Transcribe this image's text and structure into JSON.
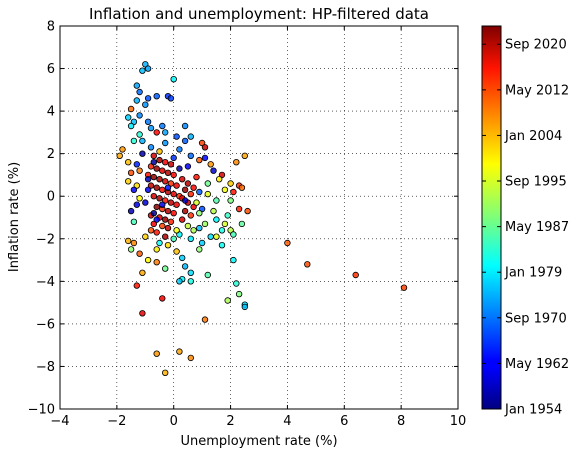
{
  "chart_data": {
    "type": "scatter",
    "title": "Inflation and unemployment: HP-filtered data",
    "xlabel": "Unemployment rate (%)",
    "ylabel": "Inflation rate (%)",
    "xlim": [
      -4,
      10
    ],
    "ylim": [
      -10,
      8
    ],
    "xticks": [
      -4,
      -2,
      0,
      2,
      4,
      6,
      8,
      10
    ],
    "yticks": [
      -10,
      -8,
      -6,
      -4,
      -2,
      0,
      2,
      4,
      6,
      8
    ],
    "grid": true,
    "marker_edge_color": "#000000",
    "colormap": "jet",
    "colorbar": {
      "range": [
        1954,
        2024
      ],
      "ticks": [
        {
          "value": 1954.0,
          "label": "Jan 1954"
        },
        {
          "value": 1962.33,
          "label": "May 1962"
        },
        {
          "value": 1970.67,
          "label": "Sep 1970"
        },
        {
          "value": 1979.0,
          "label": "Jan 1979"
        },
        {
          "value": 1987.33,
          "label": "May 1987"
        },
        {
          "value": 1995.67,
          "label": "Sep 1995"
        },
        {
          "value": 2004.0,
          "label": "Jan 2004"
        },
        {
          "value": 2012.33,
          "label": "May 2012"
        },
        {
          "value": 2020.67,
          "label": "Sep 2020"
        }
      ]
    },
    "points": [
      {
        "x": -1.0,
        "y": 6.2,
        "t": 1975
      },
      {
        "x": -0.9,
        "y": 6.0,
        "t": 1974
      },
      {
        "x": -1.1,
        "y": 5.9,
        "t": 1976
      },
      {
        "x": 0.0,
        "y": 5.5,
        "t": 1980
      },
      {
        "x": -1.3,
        "y": 5.2,
        "t": 1974
      },
      {
        "x": -1.2,
        "y": 4.9,
        "t": 1970
      },
      {
        "x": -0.6,
        "y": 4.7,
        "t": 1969
      },
      {
        "x": -0.9,
        "y": 4.6,
        "t": 1968
      },
      {
        "x": -0.2,
        "y": 4.7,
        "t": 1966
      },
      {
        "x": -0.1,
        "y": 4.6,
        "t": 1967
      },
      {
        "x": -1.3,
        "y": 4.5,
        "t": 1975
      },
      {
        "x": -1.0,
        "y": 4.3,
        "t": 1973
      },
      {
        "x": -1.5,
        "y": 4.1,
        "t": 2008
      },
      {
        "x": -1.2,
        "y": 3.8,
        "t": 1972
      },
      {
        "x": -1.6,
        "y": 3.7,
        "t": 1977
      },
      {
        "x": -1.4,
        "y": 3.5,
        "t": 1976
      },
      {
        "x": -1.5,
        "y": 3.3,
        "t": 1979
      },
      {
        "x": -0.8,
        "y": 3.2,
        "t": 1973
      },
      {
        "x": -0.6,
        "y": 3.0,
        "t": 2015
      },
      {
        "x": -1.2,
        "y": 2.9,
        "t": 1983
      },
      {
        "x": -0.4,
        "y": 3.3,
        "t": 1971
      },
      {
        "x": 0.4,
        "y": 3.3,
        "t": 1972
      },
      {
        "x": 0.6,
        "y": 2.8,
        "t": 1975
      },
      {
        "x": -1.8,
        "y": 2.2,
        "t": 2005
      },
      {
        "x": -1.9,
        "y": 1.9,
        "t": 2004
      },
      {
        "x": -1.6,
        "y": 1.6,
        "t": 2002
      },
      {
        "x": -1.3,
        "y": 1.5,
        "t": 1965
      },
      {
        "x": -1.5,
        "y": 1.1,
        "t": 2010
      },
      {
        "x": -1.6,
        "y": 0.7,
        "t": 2001
      },
      {
        "x": -1.3,
        "y": 0.5,
        "t": 2000
      },
      {
        "x": -1.4,
        "y": 0.3,
        "t": 1963
      },
      {
        "x": -1.2,
        "y": -0.1,
        "t": 1998
      },
      {
        "x": -1.3,
        "y": -0.4,
        "t": 1961
      },
      {
        "x": -1.5,
        "y": -0.7,
        "t": 1958
      },
      {
        "x": -1.4,
        "y": -1.2,
        "t": 1985
      },
      {
        "x": -1.6,
        "y": -2.1,
        "t": 2003
      },
      {
        "x": -1.4,
        "y": -2.2,
        "t": 2006
      },
      {
        "x": -1.5,
        "y": -2.5,
        "t": 1990
      },
      {
        "x": -1.2,
        "y": -2.7,
        "t": 2009
      },
      {
        "x": -0.9,
        "y": -3.0,
        "t": 1998
      },
      {
        "x": -0.6,
        "y": -3.1,
        "t": 2007
      },
      {
        "x": -1.1,
        "y": -3.6,
        "t": 2004
      },
      {
        "x": -0.3,
        "y": -3.4,
        "t": 1988
      },
      {
        "x": 0.3,
        "y": -3.9,
        "t": 1980
      },
      {
        "x": -1.3,
        "y": -4.2,
        "t": 2014
      },
      {
        "x": -0.4,
        "y": -4.8,
        "t": 2016
      },
      {
        "x": -1.1,
        "y": -5.5,
        "t": 2017
      },
      {
        "x": -0.6,
        "y": -7.4,
        "t": 2005
      },
      {
        "x": 0.2,
        "y": -7.3,
        "t": 2004
      },
      {
        "x": -0.3,
        "y": -8.3,
        "t": 2003
      },
      {
        "x": 0.6,
        "y": -7.6,
        "t": 2006
      },
      {
        "x": 1.1,
        "y": -5.8,
        "t": 2007
      },
      {
        "x": 0.4,
        "y": -3.3,
        "t": 1975
      },
      {
        "x": 0.6,
        "y": -3.6,
        "t": 1978
      },
      {
        "x": 0.2,
        "y": -4.0,
        "t": 1977
      },
      {
        "x": 0.6,
        "y": -4.0,
        "t": 1982
      },
      {
        "x": 1.2,
        "y": -3.7,
        "t": 1986
      },
      {
        "x": 2.1,
        "y": -3.0,
        "t": 1980
      },
      {
        "x": 2.2,
        "y": -4.1,
        "t": 1983
      },
      {
        "x": 2.3,
        "y": -4.6,
        "t": 1989
      },
      {
        "x": 1.9,
        "y": -4.9,
        "t": 1992
      },
      {
        "x": 2.5,
        "y": -5.1,
        "t": 1978
      },
      {
        "x": 2.5,
        "y": -5.2,
        "t": 1976
      },
      {
        "x": 4.0,
        "y": -2.2,
        "t": 2009
      },
      {
        "x": 4.7,
        "y": -3.2,
        "t": 2010
      },
      {
        "x": 6.4,
        "y": -3.7,
        "t": 2012
      },
      {
        "x": 8.1,
        "y": -4.3,
        "t": 2011
      },
      {
        "x": 2.0,
        "y": -1.6,
        "t": 1993
      },
      {
        "x": 2.1,
        "y": -1.8,
        "t": 1985
      },
      {
        "x": 1.8,
        "y": -1.3,
        "t": 1995
      },
      {
        "x": 1.5,
        "y": -1.1,
        "t": 1980
      },
      {
        "x": 2.3,
        "y": -0.6,
        "t": 2013
      },
      {
        "x": 2.6,
        "y": -0.7,
        "t": 2010
      },
      {
        "x": 2.1,
        "y": 0.2,
        "t": 2014
      },
      {
        "x": 2.3,
        "y": 0.5,
        "t": 2012
      },
      {
        "x": 2.4,
        "y": 0.4,
        "t": 2008
      },
      {
        "x": 2.0,
        "y": 0.6,
        "t": 2001
      },
      {
        "x": 2.5,
        "y": 1.9,
        "t": 2004
      },
      {
        "x": 2.2,
        "y": 1.6,
        "t": 2006
      },
      {
        "x": 1.7,
        "y": 1.0,
        "t": 2018
      },
      {
        "x": 1.4,
        "y": 1.2,
        "t": 1960
      },
      {
        "x": 1.1,
        "y": 1.8,
        "t": 1963
      },
      {
        "x": 1.0,
        "y": 2.5,
        "t": 2011
      },
      {
        "x": 1.1,
        "y": 2.3,
        "t": 2019
      },
      {
        "x": -0.7,
        "y": 1.9,
        "t": 2018
      },
      {
        "x": -0.5,
        "y": 1.7,
        "t": 2021
      },
      {
        "x": -0.3,
        "y": 1.6,
        "t": 2016
      },
      {
        "x": -0.1,
        "y": 1.5,
        "t": 2019
      },
      {
        "x": -0.8,
        "y": 1.4,
        "t": 2013
      },
      {
        "x": -0.6,
        "y": 1.3,
        "t": 2022
      },
      {
        "x": -0.4,
        "y": 1.2,
        "t": 2017
      },
      {
        "x": -0.2,
        "y": 1.1,
        "t": 2020
      },
      {
        "x": 0.0,
        "y": 1.0,
        "t": 2015
      },
      {
        "x": -0.9,
        "y": 1.0,
        "t": 2014
      },
      {
        "x": -0.7,
        "y": 0.9,
        "t": 2023
      },
      {
        "x": -0.5,
        "y": 0.8,
        "t": 2021
      },
      {
        "x": -0.3,
        "y": 0.7,
        "t": 2018
      },
      {
        "x": -0.1,
        "y": 0.6,
        "t": 2012
      },
      {
        "x": 0.1,
        "y": 0.5,
        "t": 2016
      },
      {
        "x": -0.8,
        "y": 0.5,
        "t": 2019
      },
      {
        "x": -0.6,
        "y": 0.4,
        "t": 2022
      },
      {
        "x": -0.4,
        "y": 0.3,
        "t": 2015
      },
      {
        "x": -0.2,
        "y": 0.2,
        "t": 2020
      },
      {
        "x": 0.0,
        "y": 0.1,
        "t": 2017
      },
      {
        "x": 0.2,
        "y": 0.0,
        "t": 2013
      },
      {
        "x": -0.7,
        "y": 0.0,
        "t": 2018
      },
      {
        "x": -0.5,
        "y": -0.1,
        "t": 2021
      },
      {
        "x": -0.3,
        "y": -0.2,
        "t": 2014
      },
      {
        "x": -0.1,
        "y": -0.3,
        "t": 2019
      },
      {
        "x": 0.1,
        "y": -0.4,
        "t": 2016
      },
      {
        "x": -0.6,
        "y": -0.5,
        "t": 2023
      },
      {
        "x": -0.4,
        "y": -0.6,
        "t": 2012
      },
      {
        "x": -0.2,
        "y": -0.7,
        "t": 2020
      },
      {
        "x": 0.0,
        "y": -0.8,
        "t": 2015
      },
      {
        "x": -0.8,
        "y": -0.9,
        "t": 2018
      },
      {
        "x": -0.5,
        "y": -1.0,
        "t": 2017
      },
      {
        "x": -0.3,
        "y": -1.1,
        "t": 2022
      },
      {
        "x": -0.1,
        "y": -1.2,
        "t": 2013
      },
      {
        "x": -0.7,
        "y": -1.3,
        "t": 2016
      },
      {
        "x": -0.4,
        "y": -1.4,
        "t": 2011
      },
      {
        "x": -0.2,
        "y": -1.5,
        "t": 2019
      },
      {
        "x": -0.6,
        "y": -1.7,
        "t": 2014
      },
      {
        "x": -0.3,
        "y": -1.9,
        "t": 2021
      },
      {
        "x": 0.3,
        "y": 0.8,
        "t": 2018
      },
      {
        "x": 0.5,
        "y": 0.6,
        "t": 2020
      },
      {
        "x": 0.7,
        "y": 0.4,
        "t": 2015
      },
      {
        "x": 0.4,
        "y": 0.3,
        "t": 2022
      },
      {
        "x": 0.6,
        "y": 0.1,
        "t": 2013
      },
      {
        "x": 0.3,
        "y": -0.1,
        "t": 2017
      },
      {
        "x": 0.5,
        "y": -0.3,
        "t": 2019
      },
      {
        "x": 0.7,
        "y": -0.5,
        "t": 2016
      },
      {
        "x": 0.4,
        "y": -0.7,
        "t": 2021
      },
      {
        "x": 0.6,
        "y": -0.9,
        "t": 2012
      },
      {
        "x": 0.3,
        "y": -1.1,
        "t": 2018
      },
      {
        "x": 0.8,
        "y": 0.9,
        "t": 2014
      },
      {
        "x": -0.9,
        "y": 0.3,
        "t": 1962
      },
      {
        "x": -1.0,
        "y": -0.3,
        "t": 1960
      },
      {
        "x": -0.9,
        "y": 0.8,
        "t": 1958
      },
      {
        "x": -0.7,
        "y": 1.6,
        "t": 1956
      },
      {
        "x": -0.4,
        "y": -0.4,
        "t": 1961
      },
      {
        "x": -0.2,
        "y": 0.4,
        "t": 1964
      },
      {
        "x": 0.2,
        "y": 1.3,
        "t": 1957
      },
      {
        "x": 0.4,
        "y": -0.2,
        "t": 1959
      },
      {
        "x": -0.6,
        "y": -1.1,
        "t": 1963
      },
      {
        "x": 0.9,
        "y": 0.2,
        "t": 1969
      },
      {
        "x": 1.0,
        "y": -0.6,
        "t": 1968
      },
      {
        "x": 0.2,
        "y": 2.2,
        "t": 1971
      },
      {
        "x": -0.8,
        "y": 2.3,
        "t": 1972
      },
      {
        "x": 0.6,
        "y": 1.9,
        "t": 1970
      },
      {
        "x": -0.3,
        "y": 2.5,
        "t": 1973
      },
      {
        "x": -1.1,
        "y": 2.6,
        "t": 1975
      },
      {
        "x": 0.9,
        "y": -1.5,
        "t": 1976
      },
      {
        "x": 1.0,
        "y": -2.2,
        "t": 1977
      },
      {
        "x": 0.6,
        "y": -2.0,
        "t": 1979
      },
      {
        "x": 0.2,
        "y": -1.8,
        "t": 1980
      },
      {
        "x": -0.5,
        "y": -2.2,
        "t": 1981
      },
      {
        "x": 1.3,
        "y": -1.9,
        "t": 1978
      },
      {
        "x": 1.7,
        "y": -1.6,
        "t": 1982
      },
      {
        "x": 1.9,
        "y": -0.9,
        "t": 1984
      },
      {
        "x": 1.5,
        "y": -0.2,
        "t": 1986
      },
      {
        "x": 1.2,
        "y": 0.6,
        "t": 1988
      },
      {
        "x": 0.9,
        "y": -0.8,
        "t": 1990
      },
      {
        "x": 1.1,
        "y": -1.3,
        "t": 1991
      },
      {
        "x": 0.7,
        "y": -1.6,
        "t": 1992
      },
      {
        "x": 0.5,
        "y": -1.4,
        "t": 1994
      },
      {
        "x": 1.4,
        "y": -0.7,
        "t": 1993
      },
      {
        "x": 0.8,
        "y": -0.3,
        "t": 1995
      },
      {
        "x": 1.2,
        "y": 0.1,
        "t": 1996
      },
      {
        "x": 0.1,
        "y": -1.6,
        "t": 1997
      },
      {
        "x": -0.6,
        "y": -2.5,
        "t": 1999
      },
      {
        "x": -0.2,
        "y": -2.3,
        "t": 2000
      },
      {
        "x": 0.1,
        "y": -2.6,
        "t": 2002
      },
      {
        "x": -1.0,
        "y": -1.9,
        "t": 2001
      },
      {
        "x": 1.6,
        "y": 0.8,
        "t": 1999
      },
      {
        "x": 1.8,
        "y": 0.3,
        "t": 1997
      },
      {
        "x": 1.3,
        "y": 1.5,
        "t": 2005
      },
      {
        "x": 2.4,
        "y": -1.3,
        "t": 1987
      },
      {
        "x": 2.0,
        "y": -0.2,
        "t": 1989
      },
      {
        "x": -0.7,
        "y": -0.8,
        "t": 1955
      },
      {
        "x": 0.0,
        "y": 1.8,
        "t": 1966
      },
      {
        "x": 0.5,
        "y": 1.4,
        "t": 1962
      },
      {
        "x": -1.2,
        "y": 1.2,
        "t": 2007
      },
      {
        "x": -1.4,
        "y": 2.6,
        "t": 1983
      },
      {
        "x": 0.9,
        "y": 1.7,
        "t": 2009
      },
      {
        "x": 1.5,
        "y": -1.9,
        "t": 1996
      },
      {
        "x": 1.7,
        "y": -2.3,
        "t": 1981
      },
      {
        "x": -0.8,
        "y": -1.6,
        "t": 2010
      },
      {
        "x": 0.0,
        "y": -2.0,
        "t": 1985
      },
      {
        "x": 0.3,
        "y": -2.9,
        "t": 1977
      },
      {
        "x": 0.9,
        "y": -2.5,
        "t": 1990
      },
      {
        "x": -0.5,
        "y": 2.1,
        "t": 2002
      },
      {
        "x": 0.4,
        "y": 2.6,
        "t": 1969
      },
      {
        "x": -0.9,
        "y": 3.5,
        "t": 1971
      },
      {
        "x": -1.1,
        "y": 2.0,
        "t": 1957
      },
      {
        "x": 0.1,
        "y": 2.8,
        "t": 1968
      },
      {
        "x": -0.3,
        "y": 3.0,
        "t": 1974
      }
    ]
  }
}
